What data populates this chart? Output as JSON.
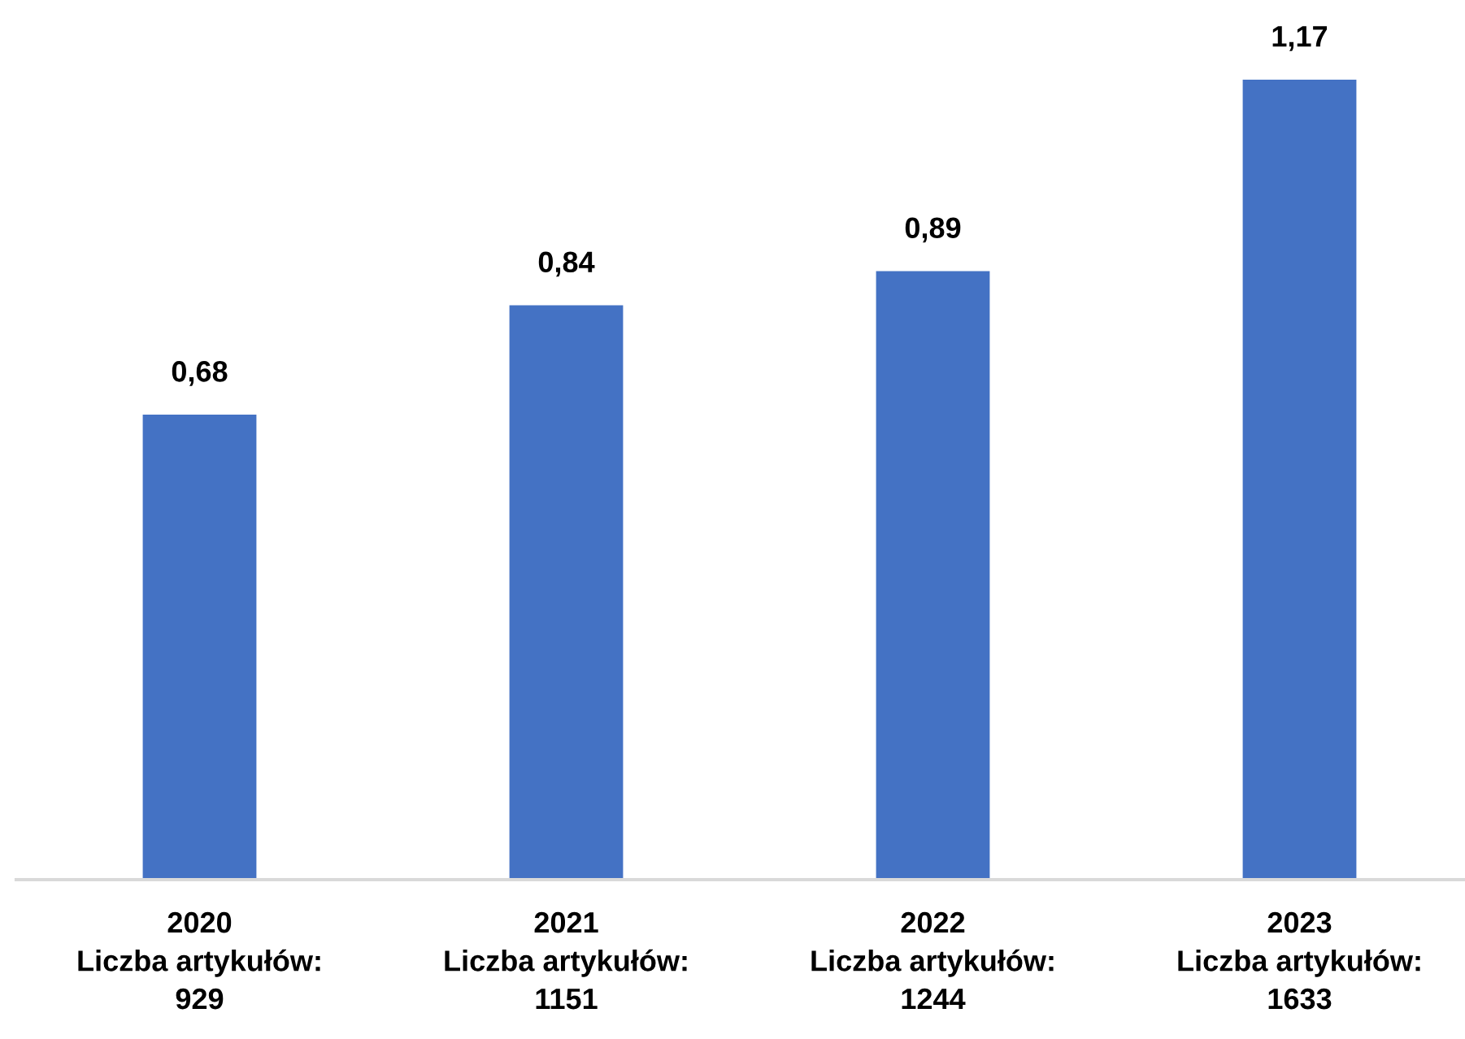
{
  "chart_data": {
    "type": "bar",
    "categories": [
      "2020\nLiczba artykułów:\n929",
      "2021\nLiczba artykułów:\n1151",
      "2022\nLiczba artykułów:\n1244",
      "2023\nLiczba artykułów:\n1633"
    ],
    "values": [
      0.68,
      0.84,
      0.89,
      1.17
    ],
    "value_labels": [
      "0,68",
      "0,84",
      "0,89",
      "1,17"
    ],
    "color": "#4472c4",
    "grid": false,
    "legend": false
  }
}
